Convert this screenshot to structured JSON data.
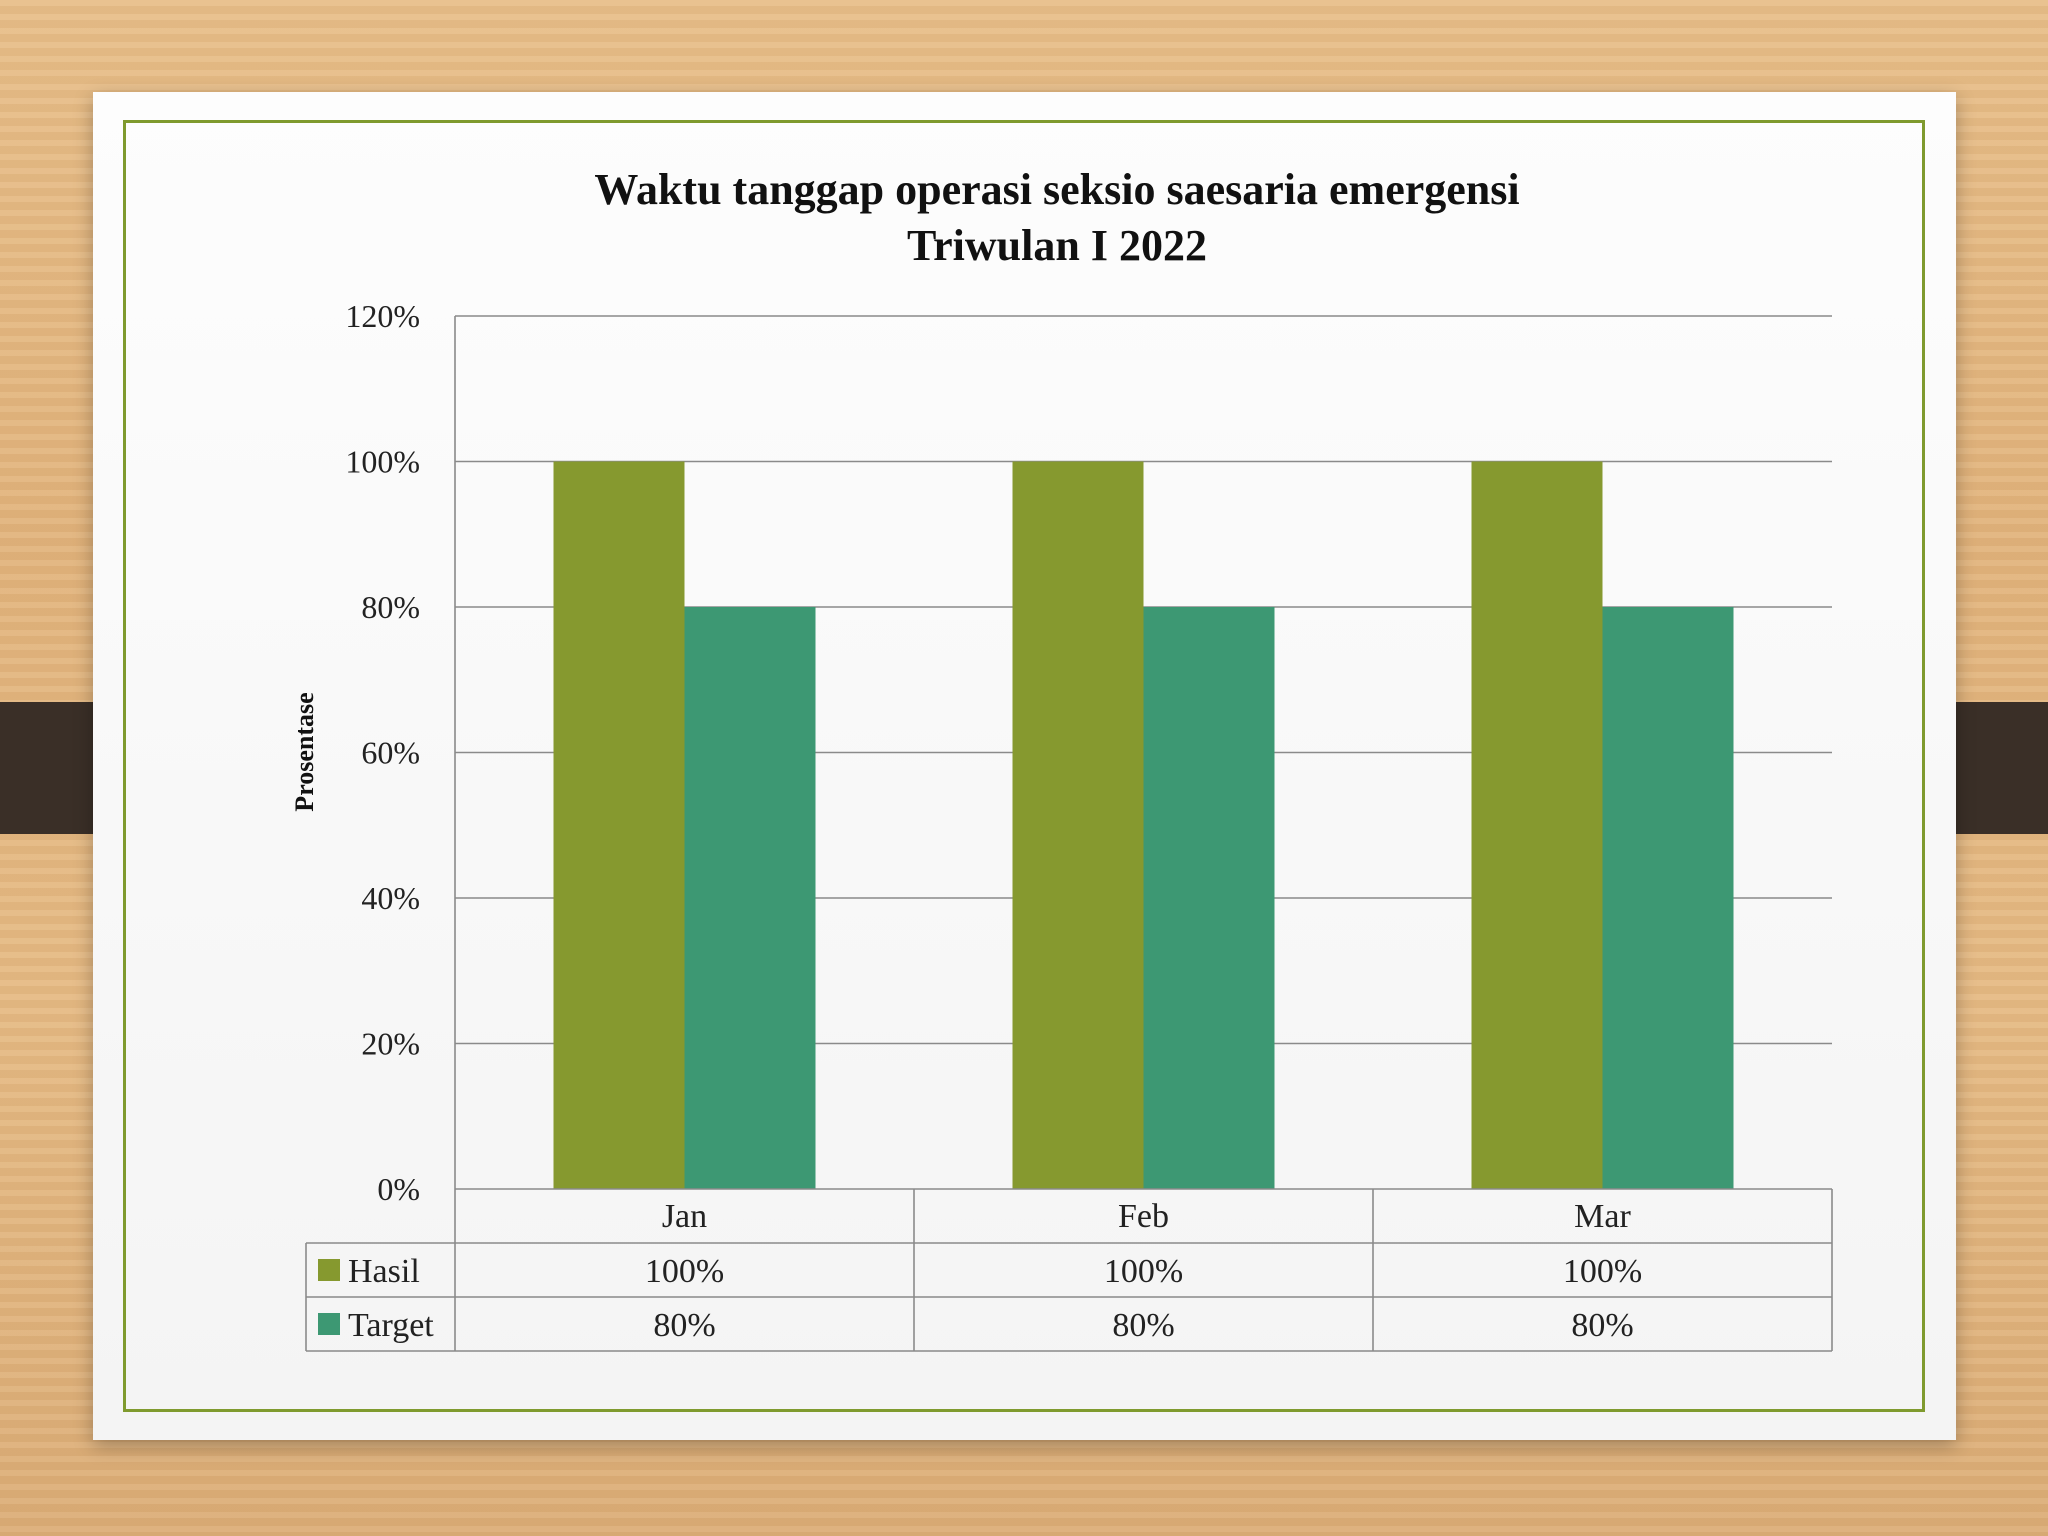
{
  "chart_data": {
    "type": "bar",
    "title": [
      "Waktu tanggap operasi seksio saesaria emergensi",
      "Triwulan I 2022"
    ],
    "ylabel": "Prosentase",
    "xlabel": "",
    "categories": [
      "Jan",
      "Feb",
      "Mar"
    ],
    "ylim": [
      0,
      1.2
    ],
    "yticks": [
      "0%",
      "20%",
      "40%",
      "60%",
      "80%",
      "100%",
      "120%"
    ],
    "grid": true,
    "legend": "data-table",
    "series": [
      {
        "name": "Hasil",
        "values": [
          1.0,
          1.0,
          1.0
        ],
        "labels": [
          "100%",
          "100%",
          "100%"
        ],
        "color": "#86992f"
      },
      {
        "name": "Target",
        "values": [
          0.8,
          0.8,
          0.8
        ],
        "labels": [
          "80%",
          "80%",
          "80%"
        ],
        "color": "#3d9873"
      }
    ]
  }
}
